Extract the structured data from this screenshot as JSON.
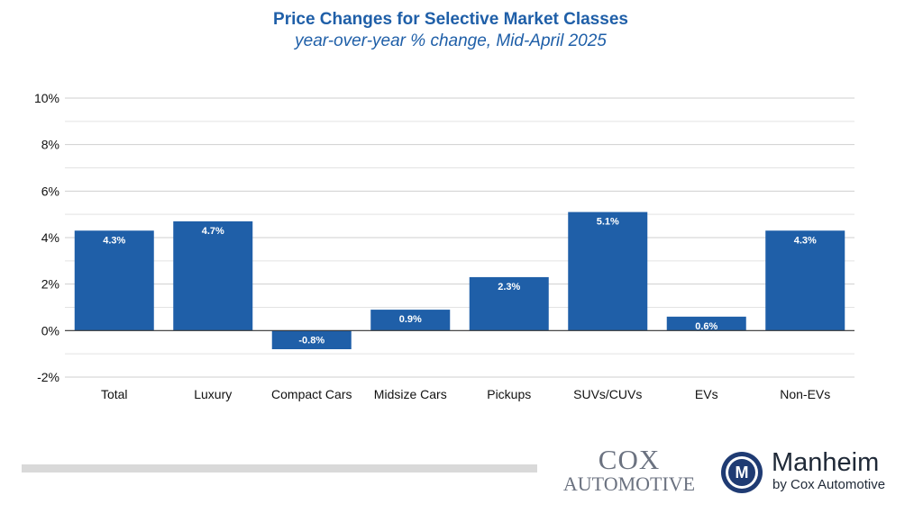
{
  "chart_data": {
    "type": "bar",
    "title": "Price Changes for Selective Market Classes",
    "subtitle": "year-over-year % change, Mid-April 2025",
    "categories": [
      "Total",
      "Luxury",
      "Compact Cars",
      "Midsize Cars",
      "Pickups",
      "SUVs/CUVs",
      "EVs",
      "Non-EVs"
    ],
    "values": [
      4.3,
      4.7,
      -0.8,
      0.9,
      2.3,
      5.1,
      0.6,
      4.3
    ],
    "value_labels": [
      "4.3%",
      "4.7%",
      "-0.8%",
      "0.9%",
      "2.3%",
      "5.1%",
      "0.6%",
      "4.3%"
    ],
    "y_ticks": [
      -2,
      0,
      2,
      4,
      6,
      8,
      10
    ],
    "y_tick_labels": [
      "-2%",
      "0%",
      "2%",
      "4%",
      "6%",
      "8%",
      "10%"
    ],
    "ylim": [
      -2,
      10
    ],
    "grid": true,
    "bar_color": "#1f5fa8",
    "xlabel": "",
    "ylabel": ""
  },
  "branding": {
    "cox_line1": "COX",
    "cox_line2": "AUTOMOTIVE",
    "manheim_name": "Manheim",
    "manheim_sub": "by Cox Automotive",
    "manheim_seal_letter": "M"
  }
}
